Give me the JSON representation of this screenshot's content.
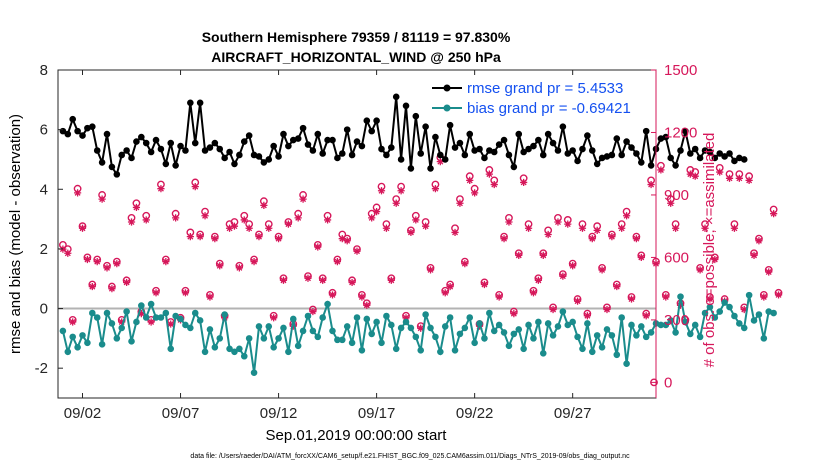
{
  "chart_data": {
    "type": "line",
    "title_line1": "Southern Hemisphere 79359 / 81119 = 97.830%",
    "title_line2": "AIRCRAFT_HORIZONTAL_WIND @ 250 hPa",
    "ylabel": "rmse and bias (model - observation)",
    "y2label": "# of obs: o=possible; ×=assimilated",
    "xlabel": "Sep.01,2019 00:00:00 start",
    "footer": "data file: /Users/raeder/DAI/ATM_forcXX/CAM6_setup/f.e21.FHIST_BGC.f09_025.CAM6assim.011/Diags_NTrS_2019-09/obs_diag_output.nc",
    "ylim": [
      -3,
      8
    ],
    "y2lim": [
      -75,
      1500
    ],
    "xlim": [
      0.25,
      30.75
    ],
    "yticks": [
      -2,
      0,
      2,
      4,
      6,
      8
    ],
    "y2ticks": [
      0,
      300,
      600,
      900,
      1200,
      1500
    ],
    "xticks": [
      {
        "x": 1.5,
        "label": "09/02"
      },
      {
        "x": 6.5,
        "label": "09/07"
      },
      {
        "x": 11.5,
        "label": "09/12"
      },
      {
        "x": 16.5,
        "label": "09/17"
      },
      {
        "x": 21.5,
        "label": "09/22"
      },
      {
        "x": 26.5,
        "label": "09/27"
      }
    ],
    "colors": {
      "rmse": "#000000",
      "bias": "#1a8c8c",
      "obs": "#d6175a",
      "legend_text": "#1450f0",
      "zero_line": "#b3b3b3"
    },
    "series": [
      {
        "name": "rmse grand pr = 5.4533",
        "axis": "left",
        "values": [
          5.95,
          5.85,
          6.35,
          5.95,
          5.8,
          6.05,
          6.1,
          5.3,
          4.9,
          5.85,
          4.75,
          4.5,
          5.15,
          5.3,
          5.05,
          5.6,
          5.75,
          5.55,
          5.25,
          5.65,
          5.35,
          4.85,
          5.55,
          4.8,
          5.45,
          5.3,
          6.9,
          5.55,
          6.9,
          5.3,
          5.4,
          5.55,
          5.35,
          5.05,
          5.25,
          4.85,
          5.15,
          5.6,
          5.8,
          5.15,
          5.1,
          4.9,
          5.0,
          5.45,
          5.1,
          5.85,
          5.45,
          5.65,
          5.7,
          6.05,
          5.5,
          5.3,
          5.85,
          5.2,
          5.65,
          5.65,
          5.05,
          5.2,
          6.0,
          5.15,
          5.6,
          5.45,
          6.3,
          5.95,
          6.3,
          5.35,
          5.15,
          5.4,
          7.1,
          5.0,
          6.8,
          4.7,
          6.45,
          5.2,
          6.1,
          4.7,
          5.75,
          5.15,
          5.0,
          6.15,
          5.4,
          5.55,
          5.15,
          5.85,
          5.3,
          5.35,
          5.05,
          5.3,
          5.25,
          5.5,
          5.65,
          5.15,
          4.75,
          5.85,
          5.25,
          5.35,
          5.45,
          5.65,
          5.15,
          5.85,
          5.55,
          5.3,
          6.1,
          5.2,
          5.3,
          4.95,
          5.35,
          5.8,
          5.3,
          4.85,
          5.05,
          5.1,
          5.15,
          5.7,
          5.15,
          5.6,
          5.4,
          5.2,
          4.9,
          5.95,
          4.8,
          5.35,
          5.7,
          5.75,
          5.05,
          4.8,
          5.3,
          5.95,
          5.2,
          5.35,
          5.05,
          5.3,
          5.25,
          5.05,
          5.2,
          5.1,
          5.2,
          4.95,
          5.05,
          5.0
        ]
      },
      {
        "name": "bias grand pr = -0.69421",
        "axis": "left",
        "values": [
          -0.75,
          -1.45,
          -0.95,
          -1.3,
          -0.9,
          -1.15,
          -0.15,
          -0.3,
          -1.2,
          -0.15,
          -0.5,
          -1.0,
          -0.65,
          -0.1,
          -1.1,
          -0.45,
          0.1,
          -0.3,
          0.15,
          -0.3,
          -0.3,
          -0.15,
          -1.35,
          -0.25,
          -0.35,
          -0.55,
          -0.65,
          -0.15,
          -0.4,
          -1.45,
          -0.7,
          -1.3,
          -1.0,
          -0.2,
          -1.35,
          -1.45,
          -1.35,
          -1.6,
          -1.0,
          -2.15,
          -0.6,
          -1.0,
          -0.6,
          -1.3,
          -1.0,
          -0.65,
          -1.45,
          -0.35,
          -1.25,
          -0.75,
          -0.25,
          -0.75,
          -0.95,
          -0.3,
          0.15,
          -0.75,
          -1.05,
          -1.05,
          -0.6,
          -1.15,
          -0.3,
          -1.4,
          -0.35,
          -0.85,
          -0.45,
          -1.15,
          -0.25,
          -0.55,
          -1.35,
          -0.65,
          -0.45,
          -0.65,
          -0.95,
          -1.4,
          -0.2,
          -0.65,
          -0.95,
          -1.45,
          -0.6,
          -0.3,
          -1.4,
          -0.85,
          -0.65,
          -0.3,
          -1.15,
          -0.5,
          -1.0,
          -0.15,
          -0.75,
          -0.55,
          -0.8,
          -1.25,
          -0.85,
          -0.7,
          -1.35,
          -0.55,
          -1.0,
          -0.45,
          -1.5,
          -0.5,
          -0.9,
          -0.6,
          -0.1,
          -0.55,
          -0.45,
          -0.95,
          -1.35,
          -0.5,
          -1.45,
          -0.9,
          -1.3,
          -0.7,
          -0.9,
          -1.55,
          -0.3,
          -1.85,
          -0.55,
          -0.9,
          -0.6,
          -0.95,
          -0.8,
          -0.5,
          -0.55,
          -0.55,
          -0.4,
          -0.8,
          0.4,
          -0.45,
          -0.85,
          -0.55,
          -0.95,
          -0.15,
          0.05,
          -0.3,
          -0.1,
          0.2,
          0.05,
          -0.25,
          -0.5,
          -0.65,
          0.45,
          -0.4,
          -0.2,
          -1.0,
          -0.1,
          -0.15
        ]
      },
      {
        "name": "obs possible",
        "axis": "right",
        "marker": "o",
        "values": [
          660,
          640,
          300,
          930,
          750,
          600,
          470,
          590,
          900,
          560,
          460,
          580,
          300,
          490,
          790,
          860,
          340,
          800,
          300,
          440,
          950,
          590,
          290,
          810,
          310,
          440,
          720,
          960,
          710,
          820,
          420,
          700,
          570,
          320,
          760,
          770,
          560,
          800,
          760,
          590,
          710,
          870,
          760,
          320,
          700,
          500,
          770,
          280,
          810,
          900,
          510,
          350,
          660,
          500,
          800,
          430,
          590,
          710,
          690,
          490,
          640,
          420,
          380,
          810,
          840,
          940,
          760,
          500,
          880,
          940,
          320,
          730,
          800,
          270,
          770,
          550,
          950,
          1080,
          440,
          470,
          740,
          880,
          580,
          990,
          930,
          280,
          480,
          1020,
          970,
          420,
          700,
          790,
          340,
          620,
          980,
          760,
          440,
          500,
          620,
          730,
          360,
          790,
          520,
          780,
          570,
          400,
          760,
          330,
          700,
          750,
          550,
          360,
          710,
          470,
          760,
          820,
          410,
          700,
          610,
          330,
          970,
          580,
          1040,
          420,
          880,
          760,
          380,
          300,
          1020,
          1010,
          550,
          760,
          410,
          600,
          1030,
          400,
          1000,
          760,
          1000,
          360,
          990,
          620,
          690,
          420,
          540,
          830,
          430
        ]
      },
      {
        "name": "obs assimilated",
        "axis": "right",
        "marker": "x",
        "values": [
          640,
          620,
          290,
          910,
          740,
          590,
          460,
          580,
          880,
          550,
          450,
          570,
          290,
          480,
          770,
          840,
          330,
          780,
          290,
          430,
          930,
          580,
          280,
          790,
          300,
          430,
          700,
          940,
          700,
          800,
          410,
          690,
          560,
          310,
          740,
          750,
          550,
          780,
          740,
          580,
          700,
          850,
          740,
          310,
          690,
          490,
          760,
          270,
          790,
          880,
          500,
          340,
          650,
          490,
          780,
          420,
          580,
          690,
          680,
          480,
          630,
          410,
          370,
          790,
          820,
          920,
          740,
          490,
          860,
          920,
          310,
          720,
          780,
          260,
          750,
          540,
          930,
          1060,
          430,
          460,
          720,
          860,
          570,
          970,
          910,
          270,
          470,
          1000,
          950,
          410,
          690,
          770,
          330,
          610,
          960,
          740,
          430,
          490,
          610,
          710,
          350,
          770,
          510,
          760,
          560,
          390,
          740,
          320,
          690,
          730,
          540,
          350,
          700,
          460,
          740,
          800,
          400,
          690,
          600,
          320,
          950,
          570,
          1020,
          410,
          860,
          740,
          370,
          290,
          1000,
          990,
          540,
          740,
          400,
          590,
          1010,
          390,
          980,
          740,
          980,
          350,
          970,
          610,
          680,
          410,
          530,
          810,
          420
        ]
      }
    ],
    "legend": [
      {
        "label": "rmse grand pr = 5.4533",
        "series": "rmse"
      },
      {
        "label": "bias grand pr = -0.69421",
        "series": "bias"
      }
    ]
  }
}
